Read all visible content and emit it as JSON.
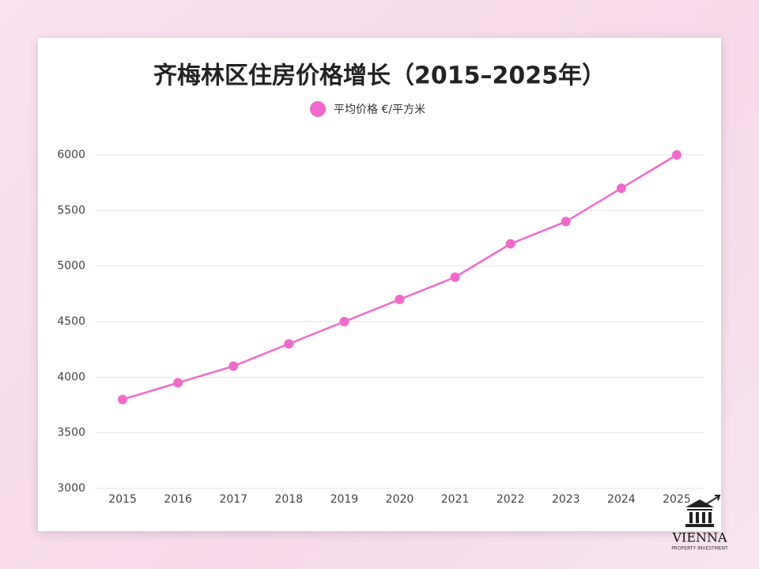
{
  "chart_data": {
    "type": "line",
    "title": "齐梅林区住房价格增长（2015–2025年）",
    "categories": [
      "2015",
      "2016",
      "2017",
      "2018",
      "2019",
      "2020",
      "2021",
      "2022",
      "2023",
      "2024",
      "2025"
    ],
    "series": [
      {
        "name": "平均价格 €/平方米",
        "color": "#f06acb",
        "values": [
          3800,
          3950,
          4100,
          4300,
          4500,
          4700,
          4900,
          5200,
          5400,
          5700,
          6000
        ]
      }
    ],
    "ylim": [
      3000,
      6000
    ],
    "yticks": [
      3000,
      3500,
      4000,
      4500,
      5000,
      5500,
      6000
    ],
    "grid": true,
    "legend": "top"
  },
  "logo": {
    "name": "VIENNA",
    "tagline": "PROPERTY INVESTMENT"
  }
}
